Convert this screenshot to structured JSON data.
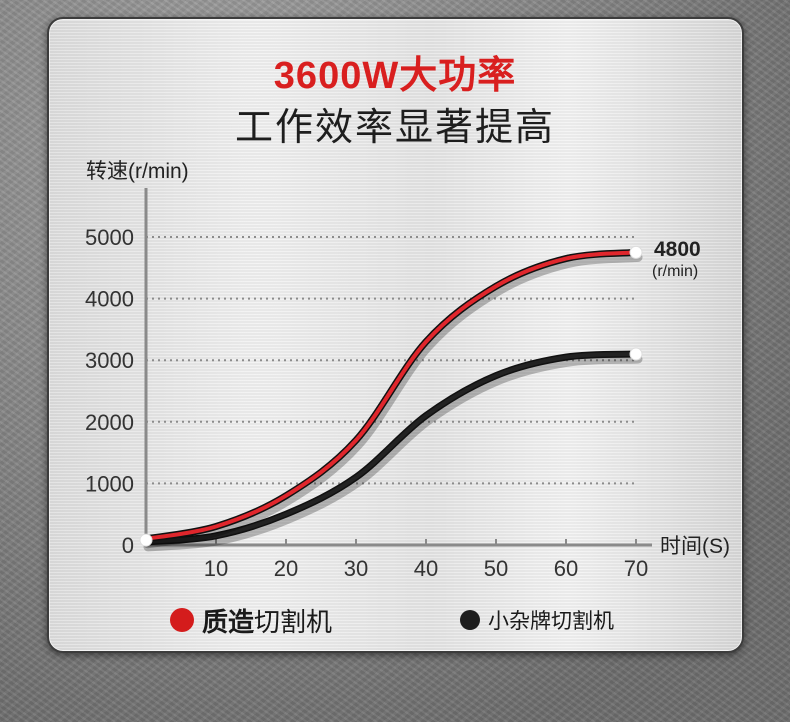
{
  "header": {
    "title_red": "3600W大功率",
    "title_black": "工作效率显著提高"
  },
  "chart_data": {
    "type": "line",
    "ylabel": "转速(r/min)",
    "xlabel": "时间(S)",
    "xlim": [
      0,
      70
    ],
    "ylim": [
      0,
      5000
    ],
    "xticks": [
      10,
      20,
      30,
      40,
      50,
      60,
      70
    ],
    "yticks": [
      0,
      1000,
      2000,
      3000,
      4000,
      5000
    ],
    "grid": "horizontal-dotted",
    "annotation": {
      "value": "4800",
      "unit": "(r/min)"
    },
    "series": [
      {
        "name": "质造切割机",
        "color": "#e0262c",
        "x": [
          0,
          10,
          20,
          30,
          40,
          50,
          60,
          70
        ],
        "y": [
          100,
          300,
          800,
          1700,
          3300,
          4200,
          4650,
          4750
        ]
      },
      {
        "name": "小杂牌切割机",
        "color": "#222222",
        "x": [
          0,
          10,
          20,
          30,
          40,
          50,
          60,
          70
        ],
        "y": [
          50,
          150,
          500,
          1100,
          2100,
          2750,
          3050,
          3100
        ]
      }
    ]
  },
  "legend": {
    "a_bold": "质造",
    "a_rest": "切割机",
    "b_label": "小杂牌切割机"
  }
}
